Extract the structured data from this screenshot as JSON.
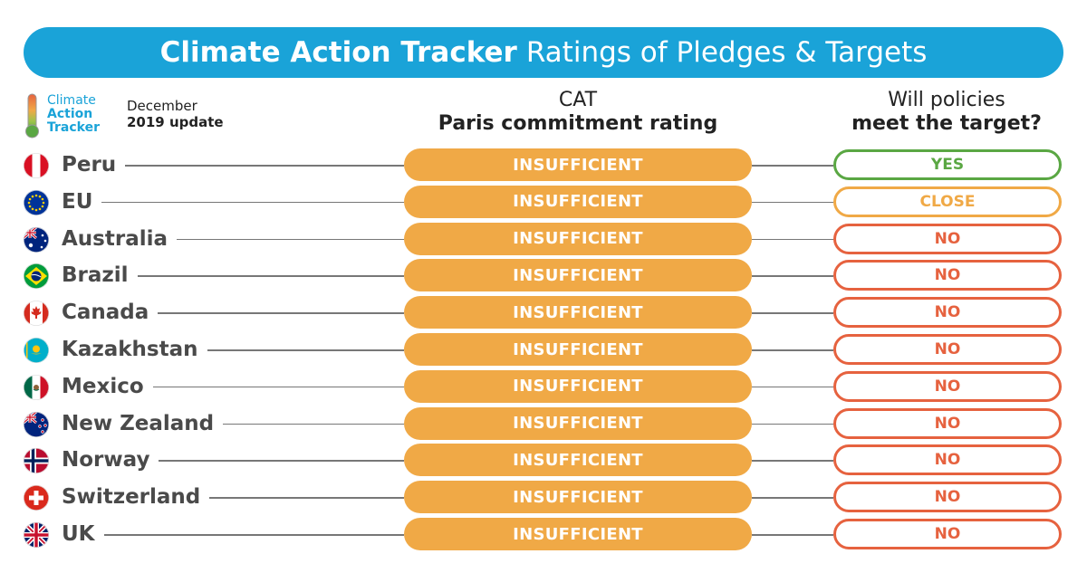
{
  "header": {
    "title_bold": "Climate Action Tracker",
    "title_light": "Ratings of Pledges & Targets",
    "bg_color": "#1aa3d8"
  },
  "logo": {
    "line1": "Climate",
    "line2": "Action",
    "line3": "Tracker"
  },
  "update": {
    "line1": "December",
    "line2": "2019 update"
  },
  "columns": {
    "rating": {
      "line1": "CAT",
      "line2": "Paris commitment rating"
    },
    "policy": {
      "line1": "Will policies",
      "line2": "meet the target?"
    }
  },
  "colors": {
    "insufficient": "#f0a946",
    "yes": "#5aa743",
    "close": "#f0a946",
    "no": "#e6623f"
  },
  "rows": [
    {
      "country": "Peru",
      "flag": "peru-flag-icon",
      "rating": "INSUFFICIENT",
      "policy": "YES",
      "policy_status": "yes"
    },
    {
      "country": "EU",
      "flag": "eu-flag-icon",
      "rating": "INSUFFICIENT",
      "policy": "CLOSE",
      "policy_status": "close"
    },
    {
      "country": "Australia",
      "flag": "australia-flag-icon",
      "rating": "INSUFFICIENT",
      "policy": "NO",
      "policy_status": "no"
    },
    {
      "country": "Brazil",
      "flag": "brazil-flag-icon",
      "rating": "INSUFFICIENT",
      "policy": "NO",
      "policy_status": "no"
    },
    {
      "country": "Canada",
      "flag": "canada-flag-icon",
      "rating": "INSUFFICIENT",
      "policy": "NO",
      "policy_status": "no"
    },
    {
      "country": "Kazakhstan",
      "flag": "kazakhstan-flag-icon",
      "rating": "INSUFFICIENT",
      "policy": "NO",
      "policy_status": "no"
    },
    {
      "country": "Mexico",
      "flag": "mexico-flag-icon",
      "rating": "INSUFFICIENT",
      "policy": "NO",
      "policy_status": "no"
    },
    {
      "country": "New Zealand",
      "flag": "new-zealand-flag-icon",
      "rating": "INSUFFICIENT",
      "policy": "NO",
      "policy_status": "no"
    },
    {
      "country": "Norway",
      "flag": "norway-flag-icon",
      "rating": "INSUFFICIENT",
      "policy": "NO",
      "policy_status": "no"
    },
    {
      "country": "Switzerland",
      "flag": "switzerland-flag-icon",
      "rating": "INSUFFICIENT",
      "policy": "NO",
      "policy_status": "no"
    },
    {
      "country": "UK",
      "flag": "uk-flag-icon",
      "rating": "INSUFFICIENT",
      "policy": "NO",
      "policy_status": "no"
    }
  ]
}
